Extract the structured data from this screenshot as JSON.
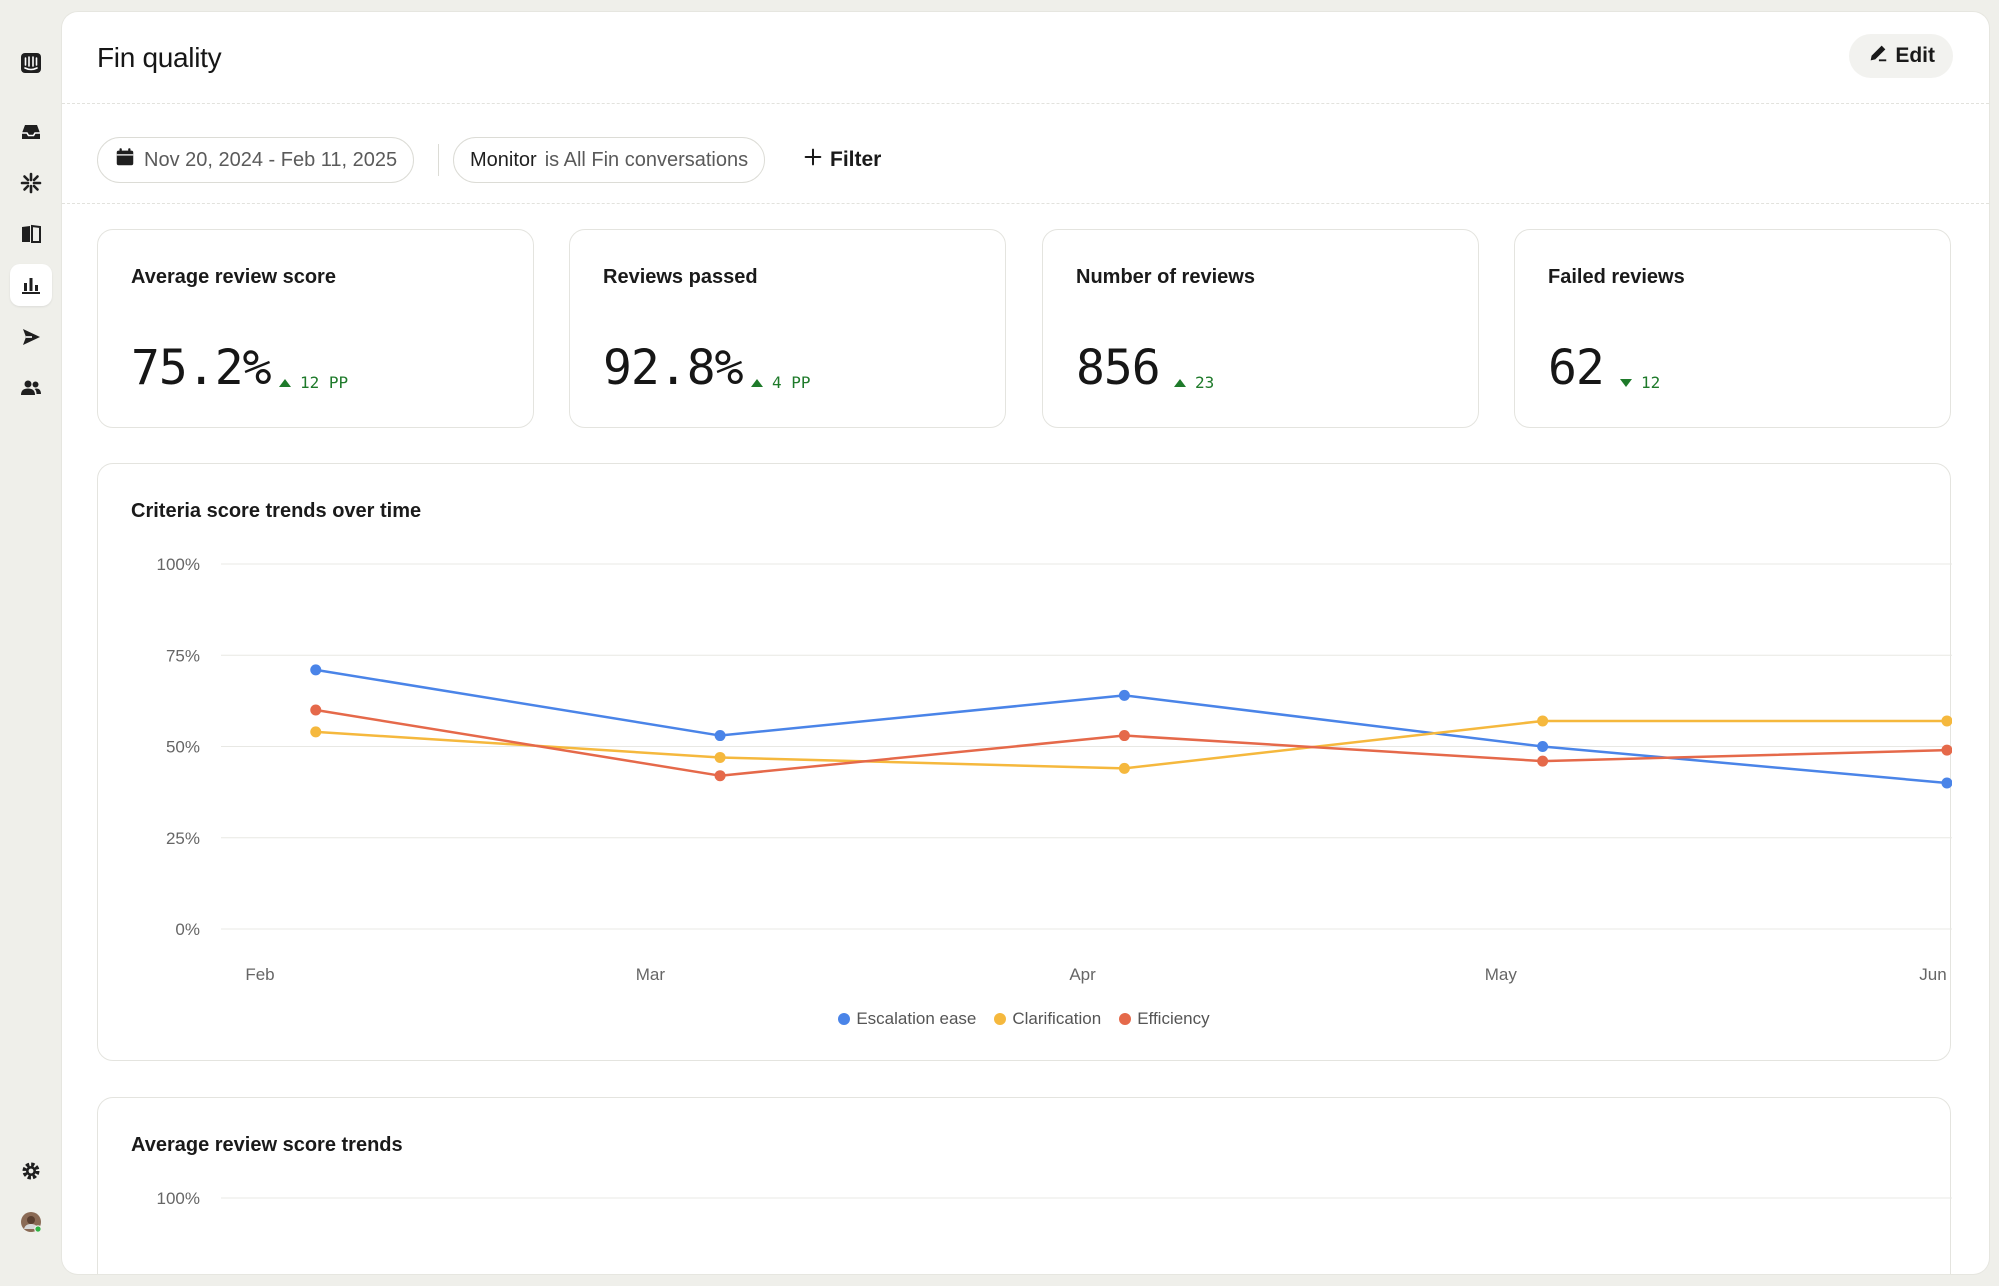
{
  "page": {
    "title": "Fin quality",
    "edit_label": "Edit"
  },
  "sidebar": {
    "items": [
      {
        "name": "intercom-logo-icon"
      },
      {
        "name": "inbox-icon"
      },
      {
        "name": "fin-ai-icon"
      },
      {
        "name": "knowledge-icon"
      },
      {
        "name": "reports-icon",
        "active": true
      },
      {
        "name": "outbound-icon"
      },
      {
        "name": "contacts-icon"
      },
      {
        "name": "settings-icon"
      },
      {
        "name": "avatar"
      }
    ]
  },
  "filters": {
    "date_range": "Nov 20, 2024 - Feb 11, 2025",
    "monitor_label": "Monitor",
    "monitor_value": "is All Fin conversations",
    "add_filter_label": "Filter"
  },
  "kpis": [
    {
      "title": "Average review score",
      "value": "75.2%",
      "delta": "12 PP",
      "direction": "up"
    },
    {
      "title": "Reviews passed",
      "value": "92.8%",
      "delta": "4 PP",
      "direction": "up"
    },
    {
      "title": "Number of reviews",
      "value": "856",
      "delta": "23",
      "direction": "up"
    },
    {
      "title": "Failed reviews",
      "value": "62",
      "delta": "12",
      "direction": "down"
    }
  ],
  "colors": {
    "escalation": "#4a84e8",
    "clarification": "#f5b83d",
    "efficiency": "#e5694a",
    "positive": "#1e7a2a",
    "grid": "#e8e8e4"
  },
  "chart_data": [
    {
      "type": "line",
      "title": "Criteria score trends over time",
      "x_ticks": [
        "Feb",
        "Mar",
        "Apr",
        "May",
        "Jun"
      ],
      "y_ticks": [
        "100%",
        "75%",
        "50%",
        "25%",
        "0%"
      ],
      "ylim": [
        0,
        100
      ],
      "grid": true,
      "legend_position": "bottom-center",
      "series": [
        {
          "name": "Escalation ease",
          "color_key": "escalation",
          "x": [
            "2025-02-05",
            "2025-03-06",
            "2025-04-04",
            "2025-05-04",
            "2025-06-02"
          ],
          "values": [
            71,
            53,
            64,
            50,
            40
          ]
        },
        {
          "name": "Clarification",
          "color_key": "clarification",
          "x": [
            "2025-02-05",
            "2025-03-06",
            "2025-04-04",
            "2025-05-04",
            "2025-06-02"
          ],
          "values": [
            54,
            47,
            44,
            57,
            57
          ]
        },
        {
          "name": "Efficiency",
          "color_key": "efficiency",
          "x": [
            "2025-02-05",
            "2025-03-06",
            "2025-04-04",
            "2025-05-04",
            "2025-06-02"
          ],
          "values": [
            60,
            42,
            53,
            46,
            49
          ]
        }
      ]
    },
    {
      "type": "line",
      "title": "Average review score trends",
      "y_ticks": [
        "100%"
      ],
      "ylim": [
        0,
        100
      ],
      "grid": true,
      "series": []
    }
  ]
}
